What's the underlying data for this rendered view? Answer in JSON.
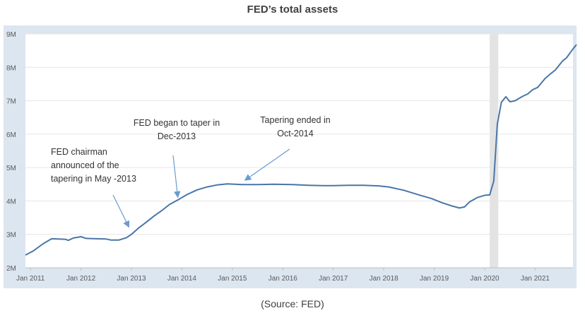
{
  "title": "FED’s total assets",
  "source": "(Source: FED)",
  "colors": {
    "frame": "#dce6f1",
    "plot_bg": "#ffffff",
    "line": "#4a76a8",
    "recession": "#e3e3e3",
    "grid": "#e6e6e6",
    "arrow": "#6a9bd1"
  },
  "chart_data": {
    "type": "line",
    "ylim": [
      2,
      9
    ],
    "y_ticks": [
      {
        "value": 9,
        "label": "9M"
      },
      {
        "value": 8,
        "label": "8M"
      },
      {
        "value": 7,
        "label": "7M"
      },
      {
        "value": 6,
        "label": "6M"
      },
      {
        "value": 5,
        "label": "5M"
      },
      {
        "value": 4,
        "label": "4M"
      },
      {
        "value": 3,
        "label": "3M"
      },
      {
        "value": 2,
        "label": "2M"
      }
    ],
    "xlim": [
      2010.9,
      2021.75
    ],
    "x_ticks": [
      {
        "value": 2011,
        "label": "Jan 2011"
      },
      {
        "value": 2012,
        "label": "Jan 2012"
      },
      {
        "value": 2013,
        "label": "Jan 2013"
      },
      {
        "value": 2014,
        "label": "Jan 2014"
      },
      {
        "value": 2015,
        "label": "Jan 2015"
      },
      {
        "value": 2016,
        "label": "Jan 2016"
      },
      {
        "value": 2017,
        "label": "Jan 2017"
      },
      {
        "value": 2018,
        "label": "Jan 2018"
      },
      {
        "value": 2019,
        "label": "Jan 2019"
      },
      {
        "value": 2020,
        "label": "Jan 2020"
      },
      {
        "value": 2021,
        "label": "Jan 2021"
      }
    ],
    "grid": true,
    "recession_band": [
      2020.1,
      2020.27
    ],
    "series": [
      {
        "points": [
          [
            2010.9,
            2.38
          ],
          [
            2011.05,
            2.5
          ],
          [
            2011.25,
            2.72
          ],
          [
            2011.42,
            2.87
          ],
          [
            2011.55,
            2.86
          ],
          [
            2011.7,
            2.85
          ],
          [
            2011.75,
            2.82
          ],
          [
            2011.85,
            2.89
          ],
          [
            2012.0,
            2.93
          ],
          [
            2012.1,
            2.88
          ],
          [
            2012.3,
            2.87
          ],
          [
            2012.5,
            2.86
          ],
          [
            2012.6,
            2.83
          ],
          [
            2012.75,
            2.83
          ],
          [
            2012.9,
            2.9
          ],
          [
            2013.0,
            3.0
          ],
          [
            2013.15,
            3.2
          ],
          [
            2013.3,
            3.37
          ],
          [
            2013.45,
            3.55
          ],
          [
            2013.6,
            3.71
          ],
          [
            2013.75,
            3.89
          ],
          [
            2013.92,
            4.03
          ],
          [
            2014.1,
            4.19
          ],
          [
            2014.3,
            4.33
          ],
          [
            2014.5,
            4.42
          ],
          [
            2014.7,
            4.48
          ],
          [
            2014.9,
            4.51
          ],
          [
            2015.2,
            4.49
          ],
          [
            2015.5,
            4.49
          ],
          [
            2015.8,
            4.5
          ],
          [
            2016.2,
            4.49
          ],
          [
            2016.5,
            4.47
          ],
          [
            2016.8,
            4.46
          ],
          [
            2017.0,
            4.46
          ],
          [
            2017.3,
            4.47
          ],
          [
            2017.6,
            4.47
          ],
          [
            2017.9,
            4.45
          ],
          [
            2018.1,
            4.42
          ],
          [
            2018.4,
            4.32
          ],
          [
            2018.7,
            4.18
          ],
          [
            2018.95,
            4.07
          ],
          [
            2019.15,
            3.95
          ],
          [
            2019.35,
            3.85
          ],
          [
            2019.5,
            3.79
          ],
          [
            2019.6,
            3.82
          ],
          [
            2019.7,
            3.97
          ],
          [
            2019.85,
            4.1
          ],
          [
            2020.0,
            4.17
          ],
          [
            2020.1,
            4.18
          ],
          [
            2020.18,
            4.6
          ],
          [
            2020.25,
            6.3
          ],
          [
            2020.33,
            6.95
          ],
          [
            2020.42,
            7.12
          ],
          [
            2020.5,
            6.97
          ],
          [
            2020.6,
            7.0
          ],
          [
            2020.75,
            7.13
          ],
          [
            2020.85,
            7.2
          ],
          [
            2020.95,
            7.33
          ],
          [
            2021.05,
            7.4
          ],
          [
            2021.2,
            7.67
          ],
          [
            2021.3,
            7.8
          ],
          [
            2021.4,
            7.92
          ],
          [
            2021.55,
            8.2
          ],
          [
            2021.62,
            8.28
          ],
          [
            2021.75,
            8.55
          ],
          [
            2021.82,
            8.68
          ]
        ]
      }
    ],
    "annotations": [
      {
        "lines": [
          "FED chairman",
          "announced of the",
          "tapering in May -2013"
        ],
        "target": [
          2012.95,
          3.22
        ]
      },
      {
        "lines": [
          "FED began to taper in",
          "Dec-2013"
        ],
        "target": [
          2013.92,
          4.11
        ]
      },
      {
        "lines": [
          "Tapering ended in",
          "Oct-2014"
        ],
        "target": [
          2015.25,
          4.62
        ]
      }
    ]
  }
}
